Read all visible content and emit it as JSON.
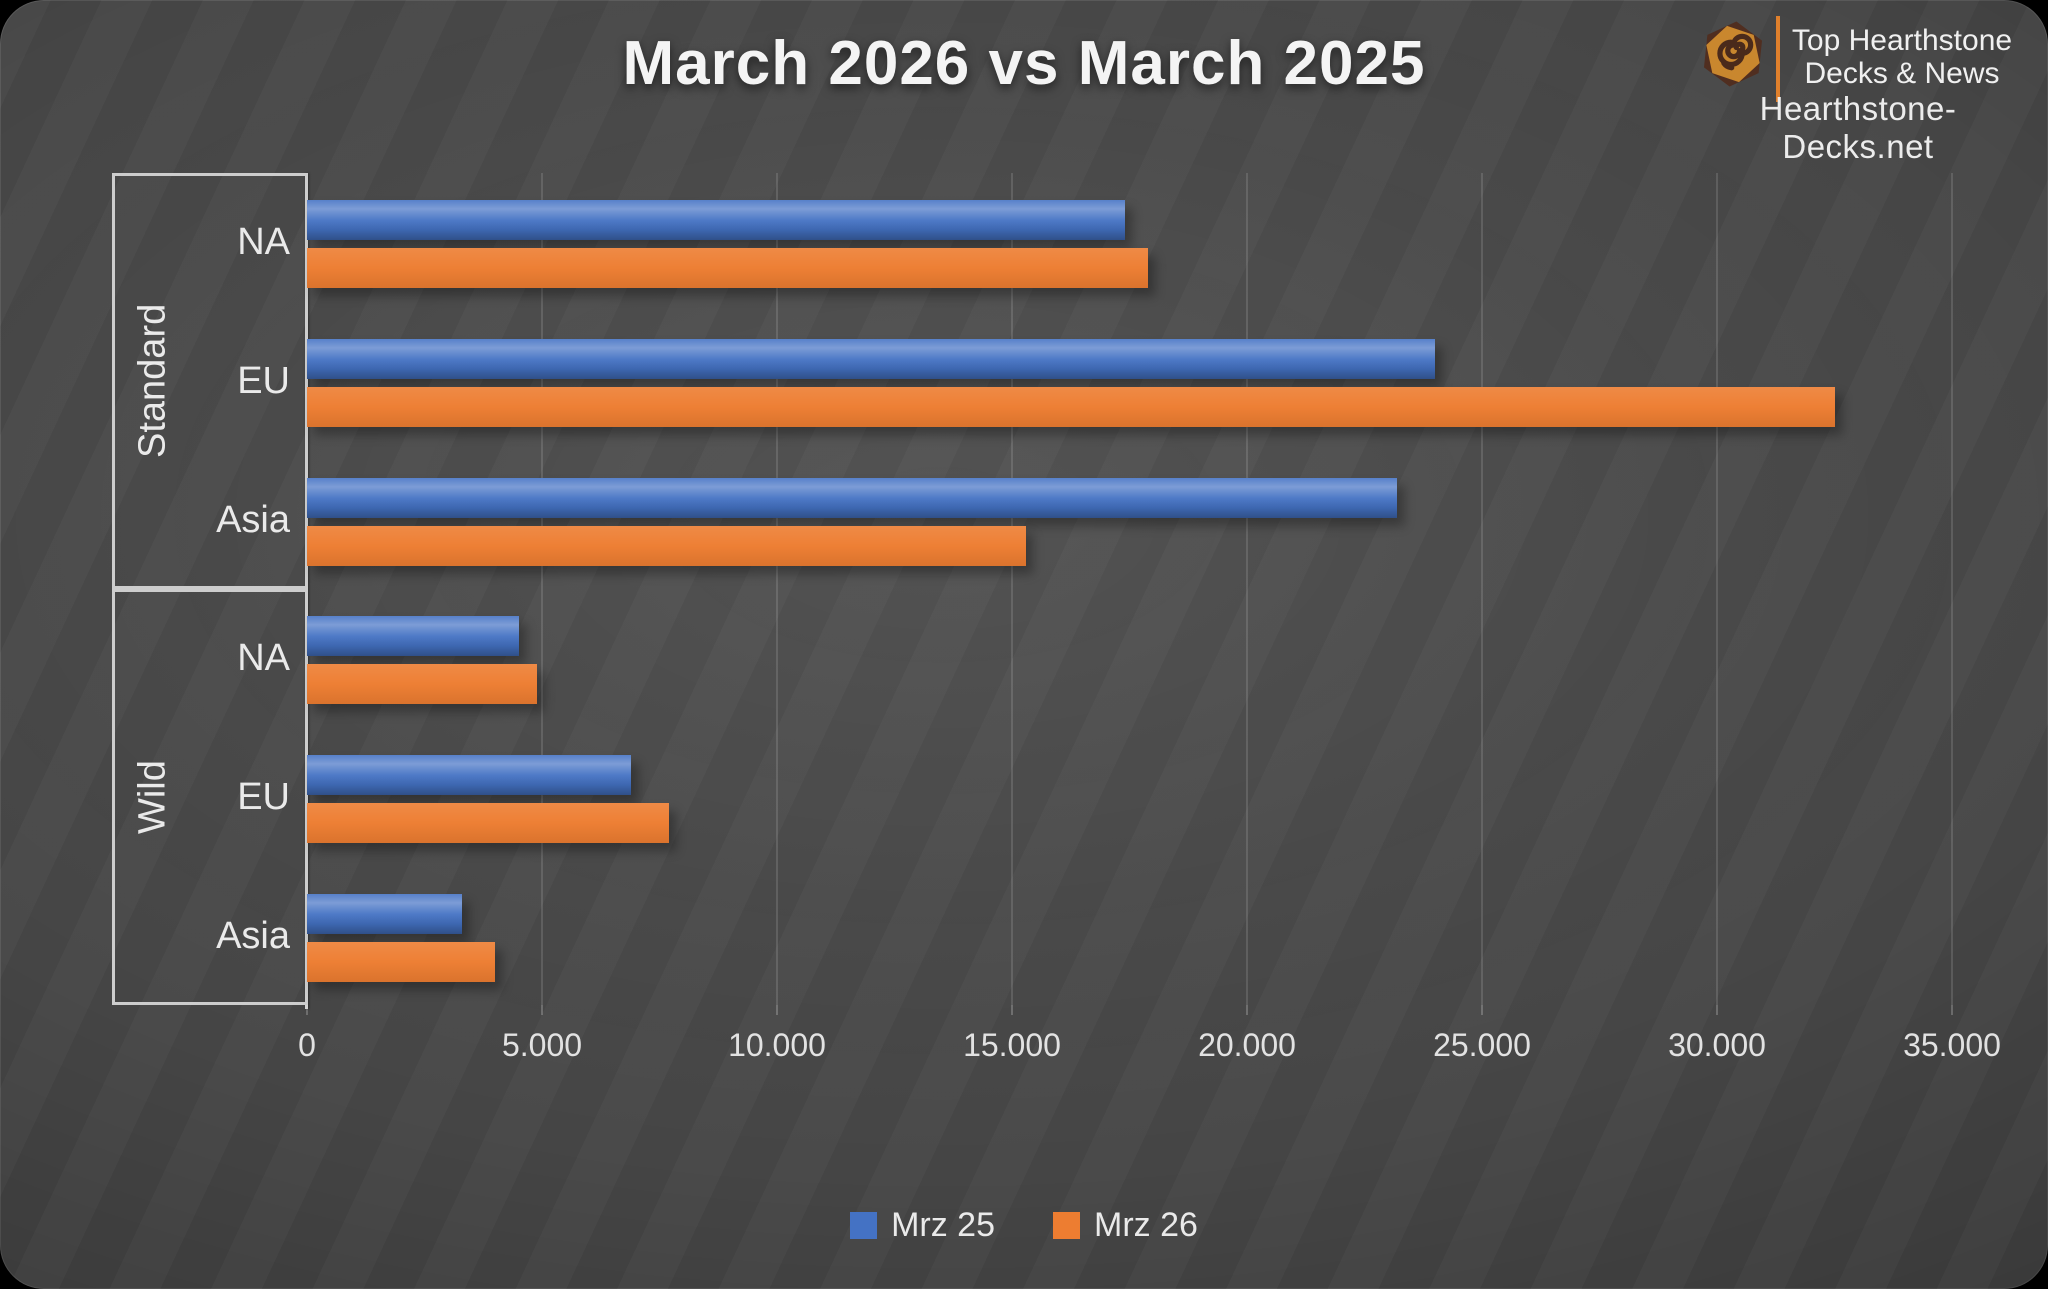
{
  "title": "March 2026 vs March 2025",
  "brand": {
    "icon": "hearthstone-swirl-hexagon-icon",
    "name_line1": "Top Hearthstone",
    "name_line2": "Decks & News",
    "website": "Hearthstone-Decks.net",
    "accent_color": "#E0802C",
    "icon_gold": "#C9872E",
    "icon_brown": "#502E20"
  },
  "chart_data": {
    "type": "bar",
    "orientation": "horizontal",
    "title": "March 2026 vs March 2025",
    "category_groups": [
      {
        "label": "Standard",
        "categories": [
          "NA",
          "EU",
          "Asia"
        ]
      },
      {
        "label": "Wild",
        "categories": [
          "NA",
          "EU",
          "Asia"
        ]
      }
    ],
    "series": [
      {
        "name": "Mrz 25",
        "color": "#4472C4",
        "values": [
          17400,
          24000,
          23200,
          4500,
          6900,
          3300
        ]
      },
      {
        "name": "Mrz 26",
        "color": "#ED7D31",
        "values": [
          17900,
          32500,
          15300,
          4900,
          7700,
          4000
        ]
      }
    ],
    "xlim": [
      0,
      35000
    ],
    "x_tick_values": [
      0,
      5000,
      10000,
      15000,
      20000,
      25000,
      30000,
      35000
    ],
    "x_tick_labels": [
      "0",
      "5.000",
      "10.000",
      "15.000",
      "20.000",
      "25.000",
      "30.000",
      "35.000"
    ],
    "grid": true,
    "legend_position": "bottom",
    "background_color": "#474747",
    "axis_color": "#D6D6D6",
    "text_color": "#EAEAEA"
  }
}
